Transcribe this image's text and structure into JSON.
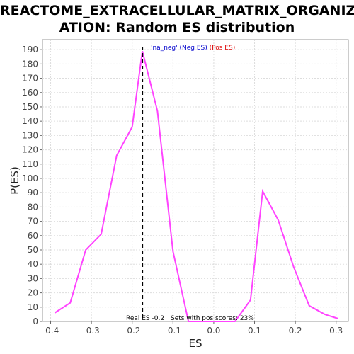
{
  "title_line1": "REACTOME_EXTRACELLULAR_MATRIX_ORGANIZ",
  "title_line2": "ATION: Random ES distribution",
  "colors": {
    "line": "#ff44ff",
    "legend_label": "#0000cc",
    "legend_pos": "#dd0000",
    "plot_bg": "#ffffff",
    "grid": "#dddddd",
    "marker": "#000000"
  },
  "legend": {
    "name": "'na_neg'",
    "neg": " (Neg ES)",
    "pos": " (Pos ES)"
  },
  "annotations": {
    "real_es": "Real ES -0.2",
    "pos_scores": "Sets with pos scores: 23%"
  },
  "chart_data": {
    "type": "line",
    "title": "REACTOME_EXTRACELLULAR_MATRIX_ORGANIZATION: Random ES distribution",
    "xlabel": "ES",
    "ylabel": "P(ES)",
    "xlim": [
      -0.42,
      0.33
    ],
    "ylim": [
      0,
      197
    ],
    "xticks": [
      -0.4,
      -0.3,
      -0.2,
      -0.1,
      0.0,
      0.1,
      0.2,
      0.3
    ],
    "xtick_labels": [
      "-0.4",
      "-0.3",
      "-0.2",
      "-0.1",
      "0.0",
      "0.1",
      "0.2",
      "0.3"
    ],
    "yticks": [
      0,
      10,
      20,
      30,
      40,
      50,
      60,
      70,
      80,
      90,
      100,
      110,
      120,
      130,
      140,
      150,
      160,
      170,
      180,
      190
    ],
    "grid": true,
    "marker_x": -0.175,
    "series": [
      {
        "x": [
          -0.39,
          -0.352,
          -0.314,
          -0.276,
          -0.238,
          -0.2,
          -0.175,
          -0.138,
          -0.1,
          -0.062,
          -0.024,
          0.014,
          0.052,
          0.09,
          0.12,
          0.158,
          0.196,
          0.234,
          0.272,
          0.305
        ],
        "y": [
          6,
          13,
          50,
          61,
          116,
          136,
          189,
          147,
          49,
          0,
          0,
          0,
          0,
          15,
          91,
          71,
          38,
          11,
          5,
          2
        ]
      }
    ]
  }
}
